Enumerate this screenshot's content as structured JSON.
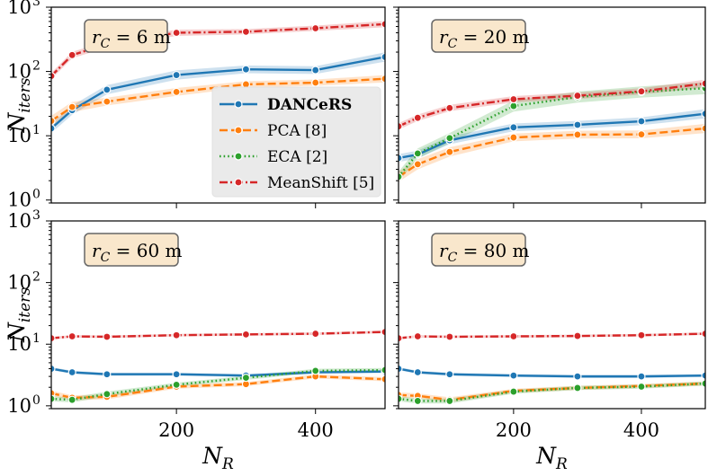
{
  "chart_data": {
    "type": "line",
    "layout": "2x2 grid, shared x and y axes",
    "y_scale": "log",
    "ylim": [
      0.9,
      1000
    ],
    "xlim": [
      20,
      500
    ],
    "xlabel": "N_R",
    "ylabel": "N_iters",
    "x_ticks": [
      200,
      400
    ],
    "y_tick_labels": [
      {
        "base": "10",
        "exp": "0",
        "value": 1
      },
      {
        "base": "10",
        "exp": "1",
        "value": 10
      },
      {
        "base": "10",
        "exp": "2",
        "value": 100
      },
      {
        "base": "10",
        "exp": "3",
        "value": 1000
      }
    ],
    "x": [
      20,
      50,
      100,
      200,
      300,
      400,
      500
    ],
    "legend": {
      "location": "top-left panel, lower right",
      "entries": [
        {
          "label": "DANCeRS",
          "bold": true,
          "color": "#1f77b4",
          "dash": "solid",
          "marker": "circle"
        },
        {
          "label": "PCA [8]",
          "bold": false,
          "color": "#ff7f0e",
          "dash": "dashed",
          "marker": "circle"
        },
        {
          "label": "ECA [2]",
          "bold": false,
          "color": "#2ca02c",
          "dash": "dotted",
          "marker": "circle"
        },
        {
          "label": "MeanShift [5]",
          "bold": false,
          "color": "#d62728",
          "dash": "dashdot",
          "marker": "circle"
        }
      ]
    },
    "panels": [
      {
        "title": "r_C = 6 m",
        "series": [
          {
            "name": "DANCeRS",
            "values": [
              13,
              25,
              52,
              88,
              108,
              105,
              168
            ],
            "band": [
              0.18,
              0.18,
              0.18,
              0.18,
              0.15,
              0.15,
              0.18
            ]
          },
          {
            "name": "PCA [8]",
            "values": [
              17,
              28,
              34,
              48,
              63,
              67,
              77
            ],
            "band": [
              0.2,
              0.2,
              0.15,
              0.15,
              0.12,
              0.12,
              0.14
            ]
          },
          {
            "name": "MeanShift [5]",
            "values": [
              85,
              180,
              265,
              400,
              415,
              470,
              545
            ],
            "band": [
              0.12,
              0.12,
              0.12,
              0.12,
              0.1,
              0.1,
              0.12
            ]
          }
        ]
      },
      {
        "title": "r_C = 20 m",
        "series": [
          {
            "name": "DANCeRS",
            "values": [
              4.5,
              5.1,
              8.5,
              13.5,
              14.8,
              16.8,
              22
            ],
            "band": [
              0.15,
              0.15,
              0.15,
              0.15,
              0.15,
              0.15,
              0.18
            ]
          },
          {
            "name": "PCA [8]",
            "values": [
              2.3,
              3.6,
              5.6,
              9.4,
              10.4,
              10.5,
              13
            ],
            "band": [
              0.2,
              0.2,
              0.18,
              0.15,
              0.15,
              0.15,
              0.18
            ]
          },
          {
            "name": "ECA [2]",
            "values": [
              2.3,
              5.3,
              9.2,
              29,
              40,
              48,
              55
            ],
            "band": [
              0.2,
              0.2,
              0.2,
              0.22,
              0.22,
              0.22,
              0.24
            ]
          },
          {
            "name": "MeanShift [5]",
            "values": [
              14,
              19,
              27,
              37,
              42,
              49,
              65
            ],
            "band": [
              0.12,
              0.12,
              0.12,
              0.12,
              0.12,
              0.12,
              0.15
            ]
          }
        ]
      },
      {
        "title": "r_C = 60 m",
        "series": [
          {
            "name": "DANCeRS",
            "values": [
              4.0,
              3.5,
              3.25,
              3.25,
              3.1,
              3.5,
              3.6
            ],
            "band": [
              0.06,
              0.06,
              0.06,
              0.06,
              0.06,
              0.06,
              0.06
            ]
          },
          {
            "name": "PCA [8]",
            "values": [
              1.6,
              1.35,
              1.4,
              2.05,
              2.25,
              3.0,
              2.7
            ],
            "band": [
              0.1,
              0.1,
              0.1,
              0.08,
              0.08,
              0.08,
              0.08
            ]
          },
          {
            "name": "ECA [2]",
            "values": [
              1.3,
              1.25,
              1.55,
              2.2,
              2.85,
              3.7,
              3.8
            ],
            "band": [
              0.1,
              0.1,
              0.1,
              0.08,
              0.08,
              0.08,
              0.08
            ]
          },
          {
            "name": "MeanShift [5]",
            "values": [
              12.5,
              13.4,
              13.2,
              14.0,
              14.4,
              14.8,
              15.8
            ],
            "band": [
              0.05,
              0.05,
              0.05,
              0.05,
              0.05,
              0.05,
              0.05
            ]
          }
        ]
      },
      {
        "title": "r_C = 80 m",
        "series": [
          {
            "name": "DANCeRS",
            "values": [
              4.0,
              3.5,
              3.25,
              3.1,
              3.0,
              3.0,
              3.1
            ],
            "band": [
              0.06,
              0.06,
              0.06,
              0.06,
              0.06,
              0.06,
              0.06
            ]
          },
          {
            "name": "PCA [8]",
            "values": [
              1.5,
              1.45,
              1.25,
              1.75,
              1.95,
              2.1,
              2.3
            ],
            "band": [
              0.1,
              0.1,
              0.1,
              0.08,
              0.08,
              0.08,
              0.08
            ]
          },
          {
            "name": "ECA [2]",
            "values": [
              1.3,
              1.2,
              1.2,
              1.7,
              1.95,
              2.05,
              2.3
            ],
            "band": [
              0.1,
              0.1,
              0.1,
              0.08,
              0.08,
              0.08,
              0.08
            ]
          },
          {
            "name": "MeanShift [5]",
            "values": [
              12.5,
              13.4,
              13.2,
              13.4,
              13.6,
              14.0,
              14.8
            ],
            "band": [
              0.05,
              0.05,
              0.05,
              0.05,
              0.05,
              0.05,
              0.05
            ]
          }
        ]
      }
    ]
  }
}
